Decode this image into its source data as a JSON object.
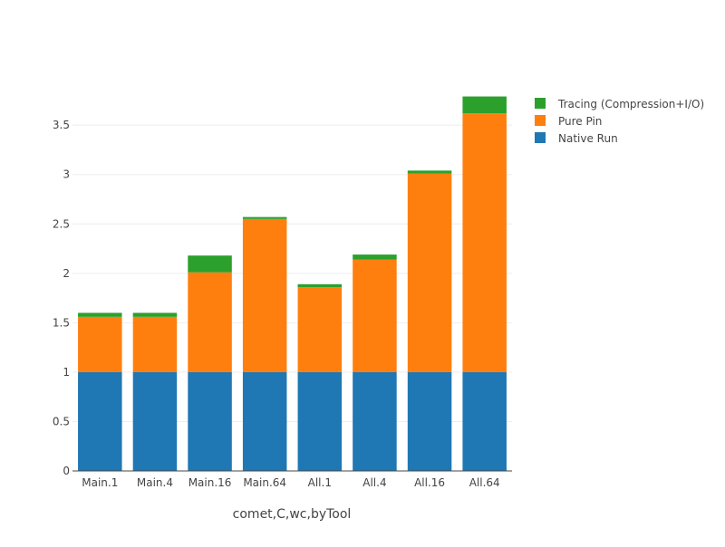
{
  "chart_data": {
    "type": "bar",
    "stacked": true,
    "xlabel": "comet,C,wc,byTool",
    "ylabel": "",
    "ylim": [
      0,
      3.85
    ],
    "yticks": [
      0,
      0.5,
      1,
      1.5,
      2,
      2.5,
      3,
      3.5
    ],
    "ytick_labels": [
      "0",
      "0.5",
      "1",
      "1.5",
      "2",
      "2.5",
      "3",
      "3.5"
    ],
    "grid": true,
    "legend_position": "top-right",
    "categories": [
      "Main.1",
      "Main.4",
      "Main.16",
      "Main.64",
      "All.1",
      "All.4",
      "All.16",
      "All.64"
    ],
    "series": [
      {
        "name": "Native Run",
        "color": "#1f77b4",
        "values": [
          1,
          1,
          1,
          1,
          1,
          1,
          1,
          1
        ]
      },
      {
        "name": "Pure Pin",
        "color": "#ff7f0e",
        "values": [
          0.56,
          0.56,
          1.01,
          1.55,
          0.86,
          1.14,
          2.01,
          2.62
        ]
      },
      {
        "name": "Tracing (Compression+I/O)",
        "color": "#2ca02c",
        "values": [
          0.04,
          0.04,
          0.17,
          0.02,
          0.03,
          0.05,
          0.03,
          0.17
        ]
      }
    ],
    "legend_order": [
      "Tracing (Compression+I/O)",
      "Pure Pin",
      "Native Run"
    ]
  }
}
